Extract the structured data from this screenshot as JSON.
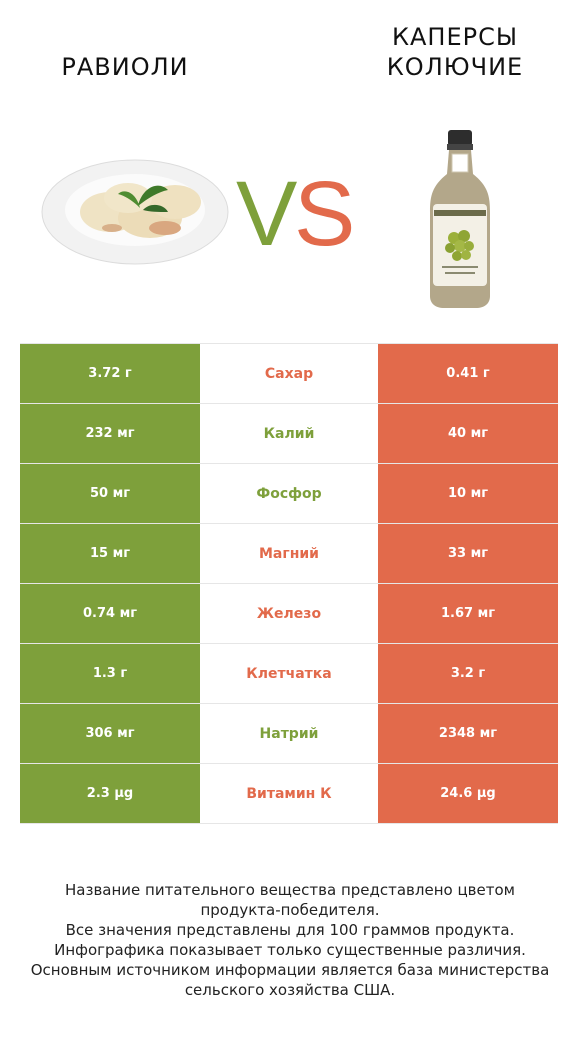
{
  "header": {
    "left_title": "РАВИОЛИ",
    "right_title_line1": "КАПЕРСЫ",
    "right_title_line2": "КОЛЮЧИЕ",
    "vs_left": "V",
    "vs_right": "S"
  },
  "colors": {
    "green": "#7ea03b",
    "orange": "#e26a4b"
  },
  "rows": [
    {
      "left": "3.72 г",
      "label": "Сахар",
      "right": "0.41 г",
      "label_color": "orange"
    },
    {
      "left": "232 мг",
      "label": "Калий",
      "right": "40 мг",
      "label_color": "green"
    },
    {
      "left": "50 мг",
      "label": "Фосфор",
      "right": "10 мг",
      "label_color": "green"
    },
    {
      "left": "15 мг",
      "label": "Магний",
      "right": "33 мг",
      "label_color": "orange"
    },
    {
      "left": "0.74 мг",
      "label": "Железо",
      "right": "1.67 мг",
      "label_color": "orange"
    },
    {
      "left": "1.3 г",
      "label": "Клетчатка",
      "right": "3.2 г",
      "label_color": "orange"
    },
    {
      "left": "306 мг",
      "label": "Натрий",
      "right": "2348 мг",
      "label_color": "green"
    },
    {
      "left": "2.3 µg",
      "label": "Витамин К",
      "right": "24.6 µg",
      "label_color": "orange"
    }
  ],
  "footer": {
    "line1": "Название питательного вещества представлено цветом",
    "line2": "продукта-победителя.",
    "line3": "Все значения представлены для 100 граммов продукта.",
    "line4": "Инфографика показывает только существенные различия.",
    "line5": "Основным источником информации является база министерства",
    "line6": "сельского хозяйства США."
  }
}
